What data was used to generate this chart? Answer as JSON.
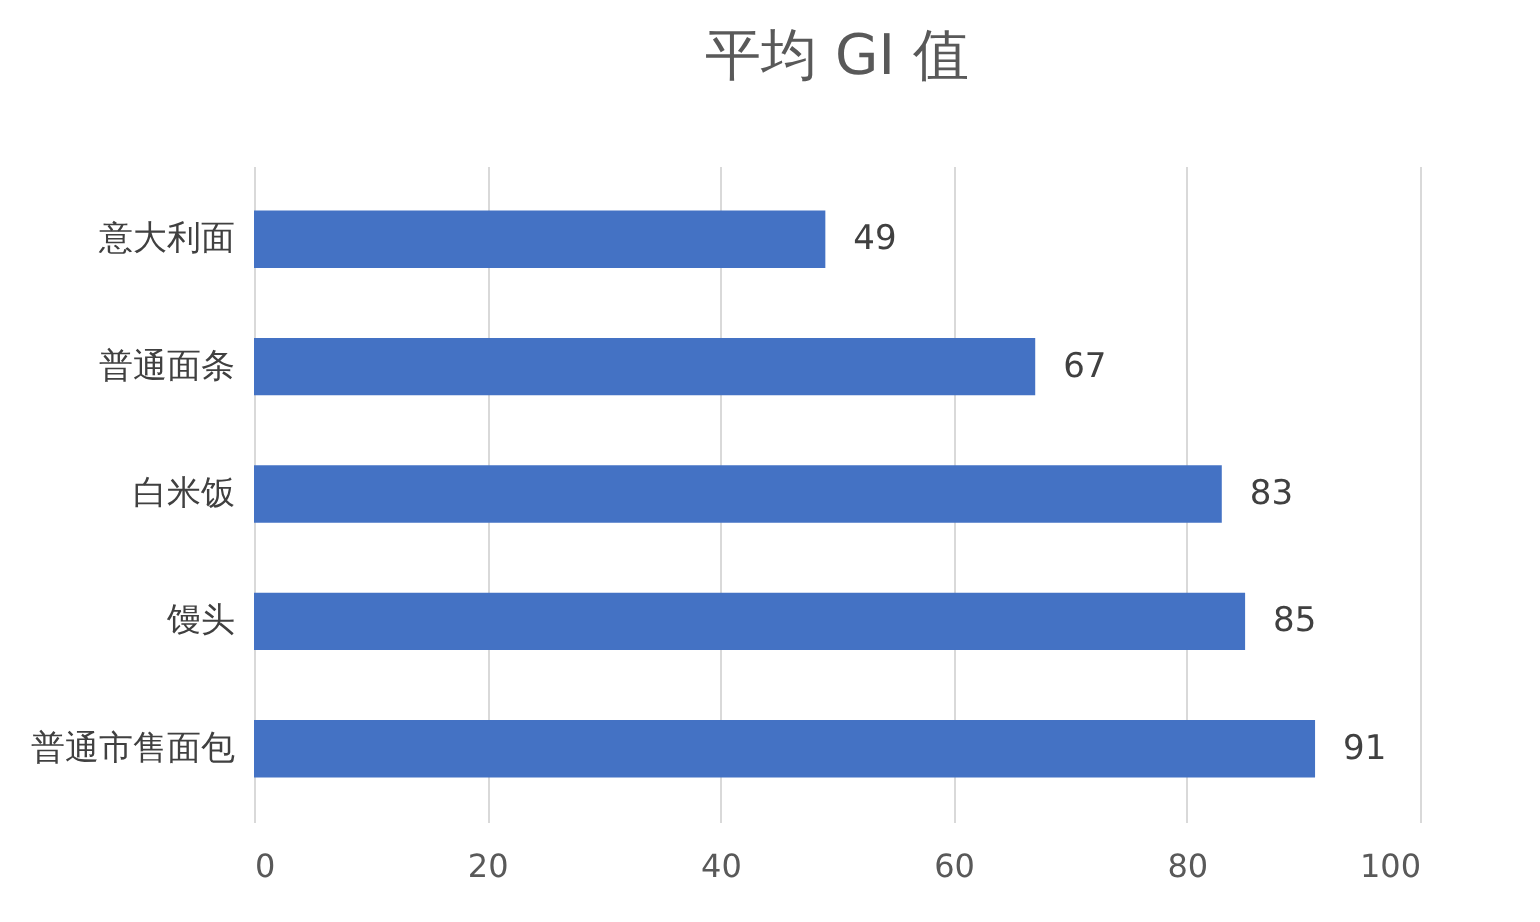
{
  "chart_data": {
    "type": "bar",
    "orientation": "horizontal",
    "title": "平均 GI 值",
    "categories": [
      "意大利面",
      "普通面条",
      "白米饭",
      "馒头",
      "普通市售面包"
    ],
    "values": [
      49,
      67,
      83,
      85,
      91
    ],
    "color": "#4472c4",
    "xlim": [
      0,
      100
    ],
    "xticks": [
      0,
      20,
      40,
      60,
      80,
      100
    ],
    "grid": "x",
    "data_labels": true
  }
}
